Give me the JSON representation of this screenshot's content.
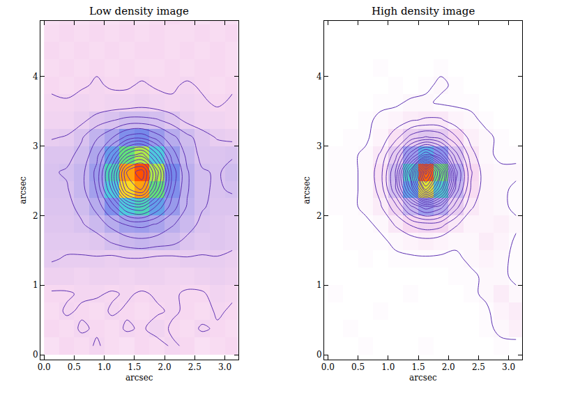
{
  "chart_data": [
    {
      "type": "heatmap",
      "title": "Low density image",
      "x_label": "arcsec",
      "y_label": "arcsec",
      "grid": false,
      "xlim": [
        -0.06,
        3.22
      ],
      "ylim": [
        -0.07,
        4.8
      ],
      "xticks": [
        {
          "value": 0,
          "label": "0.0"
        },
        {
          "value": 0.5,
          "label": "0.5"
        },
        {
          "value": 1,
          "label": "1.0"
        },
        {
          "value": 1.5,
          "label": "1.5"
        },
        {
          "value": 2,
          "label": "2.0"
        },
        {
          "value": 2.5,
          "label": "2.5"
        },
        {
          "value": 3,
          "label": "3.0"
        }
      ],
      "yticks": [
        0,
        1,
        2,
        3,
        4
      ],
      "zlim": [
        0,
        100
      ],
      "contours": {
        "start": 10.5,
        "end": 95,
        "size": 5
      },
      "x": [
        0.125,
        0.375,
        0.625,
        0.875,
        1.125,
        1.375,
        1.625,
        1.875,
        2.125,
        2.375,
        2.625,
        2.875,
        3.125
      ],
      "y": [
        0.125,
        0.375,
        0.625,
        0.875,
        1.125,
        1.375,
        1.625,
        1.875,
        2.125,
        2.375,
        2.625,
        2.875,
        3.125,
        3.375,
        3.625,
        3.875,
        4.125,
        4.375,
        4.625,
        4.875
      ],
      "z": [
        [
          8,
          10,
          9,
          11,
          9,
          8,
          10,
          9,
          11,
          10,
          8,
          9,
          10
        ],
        [
          10,
          9,
          11,
          10,
          9,
          11,
          10,
          12,
          10,
          9,
          11,
          10,
          9
        ],
        [
          9,
          11,
          10,
          9,
          11,
          10,
          9,
          10,
          11,
          10,
          9,
          11,
          10
        ],
        [
          10,
          10,
          11,
          11,
          10,
          11,
          10,
          11,
          11,
          10,
          10,
          12,
          11
        ],
        [
          13,
          13,
          12,
          13,
          13,
          12,
          13,
          13,
          12,
          12,
          13,
          14,
          13
        ],
        [
          16,
          15,
          15,
          15,
          14,
          15,
          15,
          14,
          14,
          15,
          15,
          15,
          14
        ],
        [
          17,
          17,
          17,
          18,
          21,
          23,
          24,
          23,
          22,
          19,
          17,
          18,
          17
        ],
        [
          18,
          18,
          20,
          23,
          27,
          31,
          32,
          30,
          26,
          23,
          19,
          18,
          17
        ],
        [
          19,
          19,
          22,
          27,
          37,
          51,
          55,
          44,
          33,
          25,
          21,
          19,
          19
        ],
        [
          20,
          20,
          24,
          31,
          51,
          79,
          86,
          62,
          37,
          26,
          21,
          20,
          21
        ],
        [
          20,
          21,
          24,
          32,
          55,
          86,
          94,
          68,
          39,
          26,
          21,
          20,
          22
        ],
        [
          19,
          19,
          22,
          29,
          43,
          62,
          68,
          51,
          33,
          24,
          19,
          19,
          20
        ],
        [
          15,
          16,
          20,
          25,
          30,
          37,
          39,
          33,
          27,
          22,
          18,
          15,
          14
        ],
        [
          12,
          12,
          14,
          18,
          20,
          22,
          22,
          21,
          18,
          14,
          12,
          12,
          11
        ],
        [
          11,
          11,
          12,
          11,
          12,
          12,
          13,
          12,
          11,
          12,
          11,
          10,
          11
        ],
        [
          10,
          9,
          10,
          11,
          10,
          10,
          11,
          10,
          10,
          11,
          10,
          9,
          10
        ],
        [
          9,
          10,
          9,
          10,
          9,
          10,
          9,
          9,
          10,
          9,
          10,
          10,
          9
        ],
        [
          10,
          9,
          10,
          9,
          10,
          9,
          10,
          10,
          9,
          10,
          9,
          10,
          9
        ],
        [
          9,
          10,
          9,
          10,
          9,
          10,
          9,
          10,
          9,
          9,
          10,
          9,
          10
        ],
        [
          8,
          9,
          8,
          9,
          8,
          9,
          8,
          9,
          10,
          9,
          8,
          9,
          8
        ]
      ]
    },
    {
      "type": "heatmap",
      "title": "High density image",
      "x_label": "arcsec",
      "y_label": "arcsec",
      "grid": false,
      "xlim": [
        -0.06,
        3.22
      ],
      "ylim": [
        -0.07,
        4.8
      ],
      "xticks": [
        {
          "value": 0,
          "label": "0.0"
        },
        {
          "value": 0.5,
          "label": "0.5"
        },
        {
          "value": 1,
          "label": "1.0"
        },
        {
          "value": 1.5,
          "label": "1.5"
        },
        {
          "value": 2,
          "label": "2.0"
        },
        {
          "value": 2.5,
          "label": "2.5"
        },
        {
          "value": 3,
          "label": "3.0"
        }
      ],
      "yticks": [
        0,
        1,
        2,
        3,
        4
      ],
      "zlim": [
        0,
        100
      ],
      "contours": {
        "start": 1.5,
        "end": 90,
        "size": 4
      },
      "x": [
        0.125,
        0.375,
        0.625,
        0.875,
        1.125,
        1.375,
        1.625,
        1.875,
        2.125,
        2.375,
        2.625,
        2.875,
        3.125
      ],
      "y": [
        0.125,
        0.375,
        0.625,
        0.875,
        1.125,
        1.375,
        1.625,
        1.875,
        2.125,
        2.375,
        2.625,
        2.875,
        3.125,
        3.375,
        3.625,
        3.875,
        4.125,
        4.375,
        4.625,
        4.875
      ],
      "z": [
        [
          0,
          0,
          1,
          0,
          0,
          0,
          1,
          0,
          0,
          0,
          0,
          1,
          0
        ],
        [
          0,
          1,
          0,
          0,
          0,
          0,
          0,
          0,
          0,
          0,
          1,
          2,
          4
        ],
        [
          0,
          0,
          0,
          1,
          0,
          0,
          0,
          0,
          0,
          0,
          1,
          3,
          5
        ],
        [
          1,
          0,
          0,
          0,
          0,
          1,
          0,
          0,
          0,
          1,
          2,
          5,
          2
        ],
        [
          0,
          0,
          0,
          0,
          0,
          0,
          0,
          0,
          1,
          1,
          2,
          2,
          1
        ],
        [
          0,
          0,
          1,
          0,
          1,
          1,
          1,
          1,
          1,
          2,
          3,
          2,
          1
        ],
        [
          0,
          1,
          1,
          1,
          2,
          3,
          4,
          3,
          2,
          2,
          5,
          3,
          1
        ],
        [
          0,
          1,
          1,
          2,
          6,
          10,
          12,
          11,
          6,
          3,
          3,
          4,
          2
        ],
        [
          1,
          1,
          2,
          5,
          12,
          24,
          32,
          27,
          15,
          6,
          3,
          2,
          1
        ],
        [
          1,
          1,
          2,
          7,
          21,
          45,
          74,
          53,
          24,
          9,
          3,
          2,
          1
        ],
        [
          1,
          1,
          2,
          8,
          22,
          53,
          92,
          63,
          27,
          10,
          3,
          2,
          2
        ],
        [
          1,
          1,
          2,
          6,
          16,
          32,
          46,
          35,
          19,
          7,
          2,
          1,
          1
        ],
        [
          0,
          1,
          1,
          3,
          8,
          15,
          18,
          16,
          10,
          4,
          2,
          1,
          0
        ],
        [
          0,
          0,
          1,
          2,
          3,
          5,
          6,
          6,
          3,
          2,
          1,
          0,
          0
        ],
        [
          0,
          0,
          0,
          1,
          1,
          2,
          2,
          1,
          1,
          1,
          0,
          0,
          0
        ],
        [
          0,
          0,
          0,
          0,
          1,
          0,
          1,
          2,
          1,
          0,
          0,
          0,
          0
        ],
        [
          0,
          0,
          0,
          1,
          0,
          0,
          0,
          1,
          0,
          0,
          0,
          0,
          0
        ],
        [
          0,
          0,
          0,
          0,
          0,
          0,
          0,
          0,
          0,
          0,
          0,
          0,
          0
        ],
        [
          0,
          0,
          0,
          0,
          0,
          0,
          0,
          0,
          0,
          0,
          0,
          0,
          0
        ],
        [
          0,
          0,
          0,
          0,
          0,
          0,
          0,
          0,
          0,
          0,
          0,
          0,
          0
        ]
      ]
    }
  ]
}
